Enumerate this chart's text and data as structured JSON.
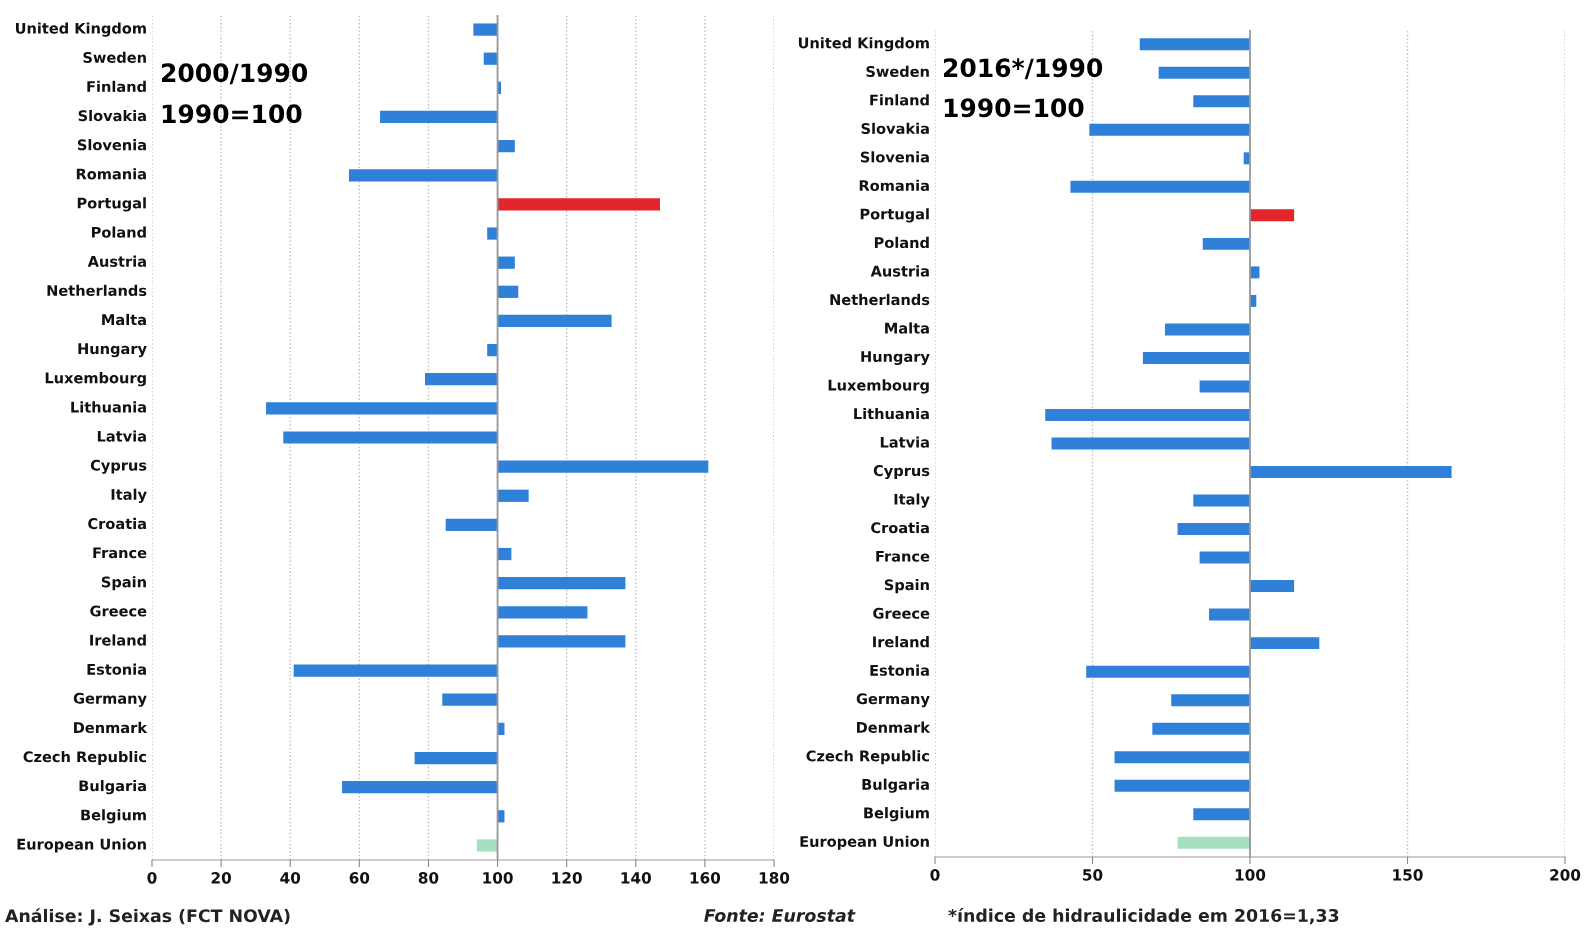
{
  "chart_data": [
    {
      "type": "bar",
      "orientation": "horizontal",
      "title": "2000/1990",
      "subtitle": "1990=100",
      "categories": [
        "United Kingdom",
        "Sweden",
        "Finland",
        "Slovakia",
        "Slovenia",
        "Romania",
        "Portugal",
        "Poland",
        "Austria",
        "Netherlands",
        "Malta",
        "Hungary",
        "Luxembourg",
        "Lithuania",
        "Latvia",
        "Cyprus",
        "Italy",
        "Croatia",
        "France",
        "Spain",
        "Greece",
        "Ireland",
        "Estonia",
        "Germany",
        "Denmark",
        "Czech Republic",
        "Bulgaria",
        "Belgium",
        "European Union"
      ],
      "base": [
        100,
        100,
        100,
        100,
        100,
        100,
        100,
        100,
        100,
        100,
        100,
        100,
        100,
        100,
        100,
        100,
        100,
        100,
        100,
        100,
        100,
        100,
        100,
        100,
        100,
        100,
        100,
        100,
        100
      ],
      "values": [
        -7,
        -4,
        1,
        -34,
        5,
        -43,
        47,
        -3,
        5,
        6,
        33,
        -3,
        -21,
        -67,
        -62,
        61,
        9,
        -15,
        4,
        37,
        26,
        37,
        -59,
        -16,
        2,
        -24,
        -45,
        2,
        -6
      ],
      "colors": [
        "#2f80d8",
        "#2f80d8",
        "#2f80d8",
        "#2f80d8",
        "#2f80d8",
        "#2f80d8",
        "#e3262b",
        "#2f80d8",
        "#2f80d8",
        "#2f80d8",
        "#2f80d8",
        "#2f80d8",
        "#2f80d8",
        "#2f80d8",
        "#2f80d8",
        "#2f80d8",
        "#2f80d8",
        "#2f80d8",
        "#2f80d8",
        "#2f80d8",
        "#2f80d8",
        "#2f80d8",
        "#2f80d8",
        "#2f80d8",
        "#2f80d8",
        "#2f80d8",
        "#2f80d8",
        "#2f80d8",
        "#a6dfc0"
      ],
      "xlim": [
        0,
        180
      ],
      "xticks": [
        0,
        20,
        40,
        60,
        80,
        100,
        120,
        140,
        160,
        180
      ],
      "grid": "x",
      "ref_lines": [
        {
          "axis": "x",
          "value": 100,
          "color": "#999999"
        }
      ],
      "annotations": [
        "Análise: J. Seixas (FCT NOVA)",
        "Fonte: Eurostat"
      ]
    },
    {
      "type": "bar",
      "orientation": "horizontal",
      "title": "2016*/1990",
      "subtitle": "1990=100",
      "categories": [
        "United Kingdom",
        "Sweden",
        "Finland",
        "Slovakia",
        "Slovenia",
        "Romania",
        "Portugal",
        "Poland",
        "Austria",
        "Netherlands",
        "Malta",
        "Hungary",
        "Luxembourg",
        "Lithuania",
        "Latvia",
        "Cyprus",
        "Italy",
        "Croatia",
        "France",
        "Spain",
        "Greece",
        "Ireland",
        "Estonia",
        "Germany",
        "Denmark",
        "Czech Republic",
        "Bulgaria",
        "Belgium",
        "European Union"
      ],
      "base": [
        100,
        100,
        100,
        100,
        100,
        100,
        100,
        100,
        100,
        100,
        100,
        100,
        100,
        100,
        100,
        100,
        100,
        100,
        100,
        100,
        100,
        100,
        100,
        100,
        100,
        100,
        100,
        100,
        100
      ],
      "values": [
        -35,
        -29,
        -18,
        -51,
        -2,
        -57,
        14,
        -15,
        3,
        2,
        -27,
        -34,
        -16,
        -65,
        -63,
        64,
        -18,
        -23,
        -16,
        14,
        -13,
        22,
        -52,
        -25,
        -31,
        -43,
        -43,
        -18,
        -23
      ],
      "colors": [
        "#2f80d8",
        "#2f80d8",
        "#2f80d8",
        "#2f80d8",
        "#2f80d8",
        "#2f80d8",
        "#e3262b",
        "#2f80d8",
        "#2f80d8",
        "#2f80d8",
        "#2f80d8",
        "#2f80d8",
        "#2f80d8",
        "#2f80d8",
        "#2f80d8",
        "#2f80d8",
        "#2f80d8",
        "#2f80d8",
        "#2f80d8",
        "#2f80d8",
        "#2f80d8",
        "#2f80d8",
        "#2f80d8",
        "#2f80d8",
        "#2f80d8",
        "#2f80d8",
        "#2f80d8",
        "#2f80d8",
        "#a6dfc0"
      ],
      "xlim": [
        0,
        200
      ],
      "xticks": [
        0,
        50,
        100,
        150,
        200
      ],
      "grid": "x",
      "ref_lines": [
        {
          "axis": "x",
          "value": 100,
          "color": "#999999"
        }
      ],
      "annotations": [
        "*índice de hidraulicidade em 2016=1,33"
      ]
    }
  ]
}
